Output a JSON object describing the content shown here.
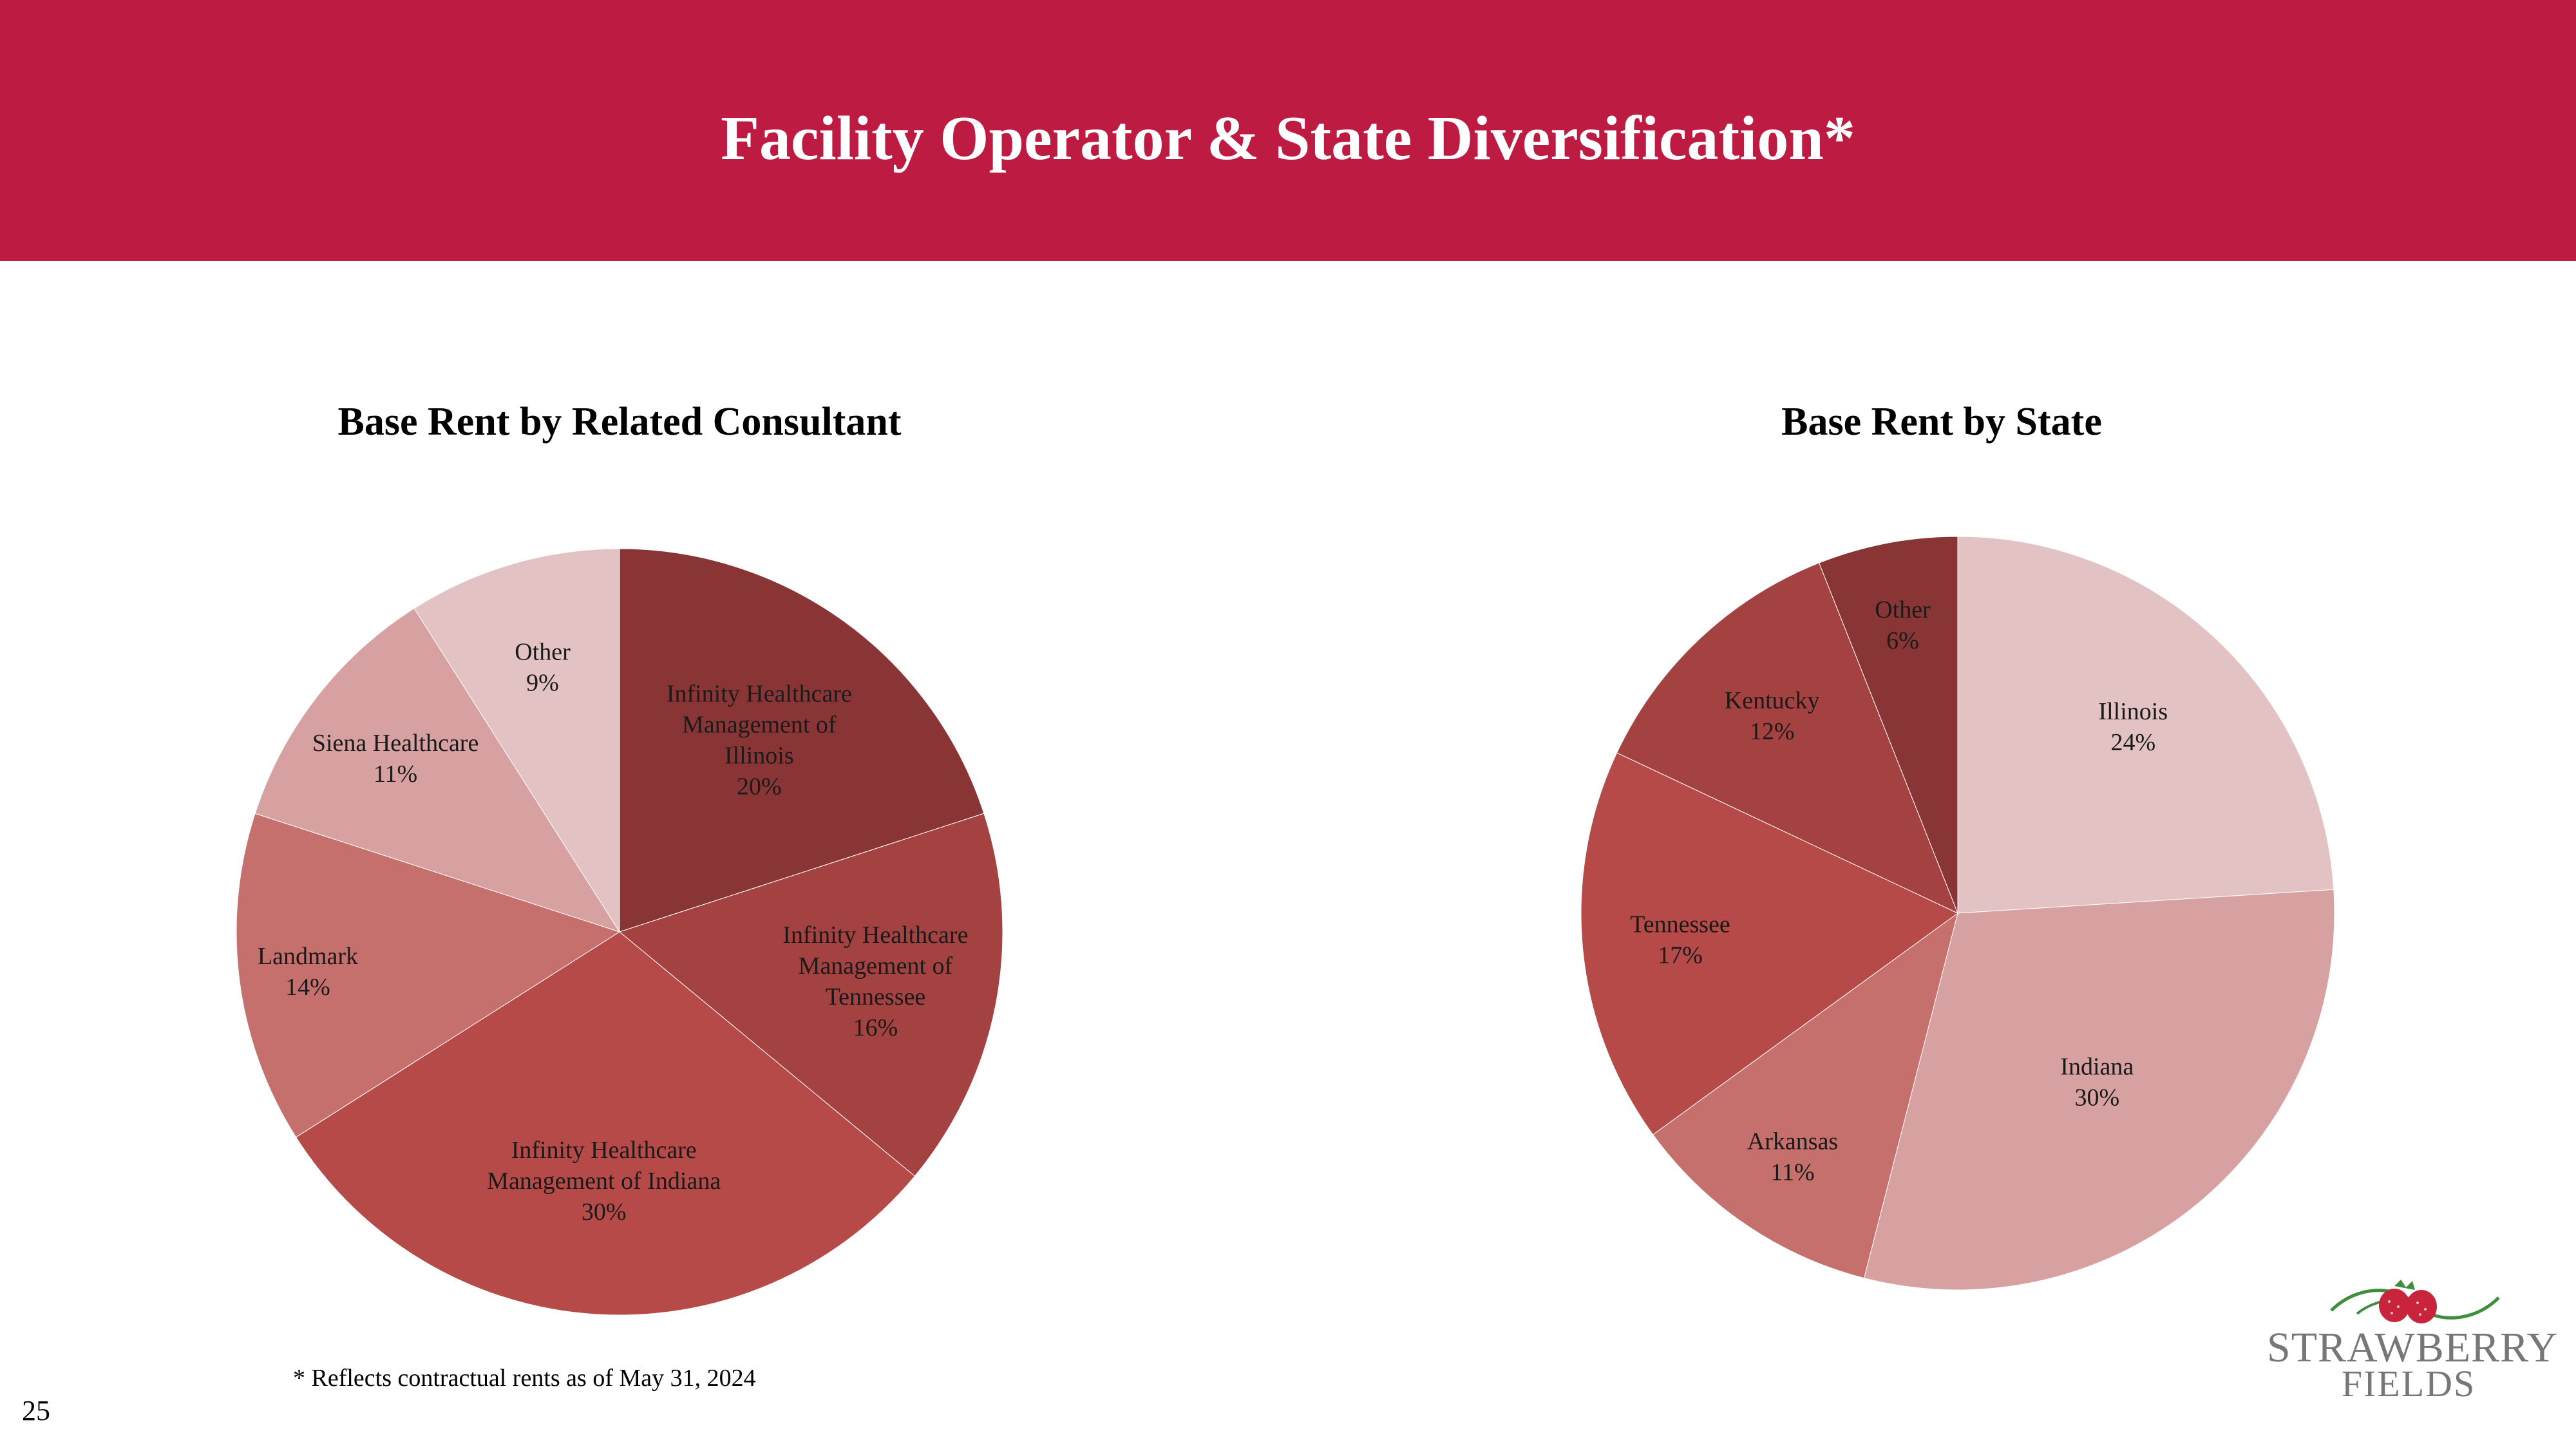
{
  "header": {
    "title": "Facility Operator & State Diversification*"
  },
  "colors": {
    "header_bg": "#BE1B43",
    "palette": [
      "#8A3535",
      "#A34240",
      "#B54A49",
      "#C6706E",
      "#D7A1A1",
      "#E2C2C3"
    ]
  },
  "chart_data": [
    {
      "type": "pie",
      "title": "Base Rent by Related Consultant",
      "start_angle_deg": 0,
      "direction": "clockwise",
      "slices": [
        {
          "label": [
            "Infinity Healthcare",
            "Management of",
            "Illinois"
          ],
          "pct_label": "20%",
          "value": 20,
          "color": "#8A3535"
        },
        {
          "label": [
            "Infinity Healthcare",
            "Management of",
            "Tennessee"
          ],
          "pct_label": "16%",
          "value": 16,
          "color": "#A34240"
        },
        {
          "label": [
            "Infinity Healthcare",
            "Management of Indiana"
          ],
          "pct_label": "30%",
          "value": 30,
          "color": "#B54A49"
        },
        {
          "label": [
            "Landmark"
          ],
          "pct_label": "14%",
          "value": 14,
          "color": "#C6706E"
        },
        {
          "label": [
            "Siena Healthcare"
          ],
          "pct_label": "11%",
          "value": 11,
          "color": "#D7A1A1"
        },
        {
          "label": [
            "Other"
          ],
          "pct_label": "9%",
          "value": 9,
          "color": "#E2C2C3"
        }
      ]
    },
    {
      "type": "pie",
      "title": "Base Rent by State",
      "start_angle_deg": 0,
      "direction": "clockwise",
      "slices": [
        {
          "label": [
            "Illinois"
          ],
          "pct_label": "24%",
          "value": 24,
          "color": "#E2C2C3"
        },
        {
          "label": [
            "Indiana"
          ],
          "pct_label": "30%",
          "value": 30,
          "color": "#D7A1A1"
        },
        {
          "label": [
            "Arkansas"
          ],
          "pct_label": "11%",
          "value": 11,
          "color": "#C6706E"
        },
        {
          "label": [
            "Tennessee"
          ],
          "pct_label": "17%",
          "value": 17,
          "color": "#B54A49"
        },
        {
          "label": [
            "Kentucky"
          ],
          "pct_label": "12%",
          "value": 12,
          "color": "#A34240"
        },
        {
          "label": [
            "Other"
          ],
          "pct_label": "6%",
          "value": 6,
          "color": "#8A3535"
        }
      ]
    }
  ],
  "footnote": "* Reflects contractual rents as of May 31, 2024",
  "page_number": "25",
  "logo": {
    "line1": "STRAWBERRY",
    "line2": "FIELDS",
    "icon": "strawberry-icon"
  }
}
